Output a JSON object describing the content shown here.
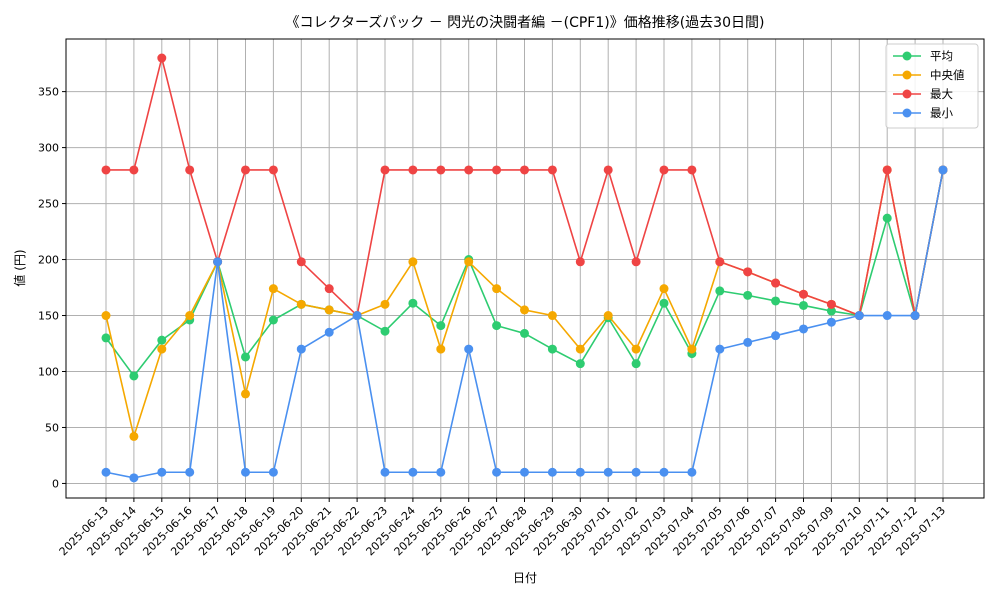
{
  "chart_data": {
    "type": "line",
    "title": "《コレクターズパック － 閃光の決闘者編 －(CPF1)》価格推移(過去30日間)",
    "xlabel": "日付",
    "ylabel": "値 (円)",
    "ylim": [
      -13,
      397
    ],
    "yticks": [
      0,
      50,
      100,
      150,
      200,
      250,
      300,
      350
    ],
    "grid": true,
    "legend_position": "top-right",
    "categories": [
      "2025-06-13",
      "2025-06-14",
      "2025-06-15",
      "2025-06-16",
      "2025-06-17",
      "2025-06-18",
      "2025-06-19",
      "2025-06-20",
      "2025-06-21",
      "2025-06-22",
      "2025-06-23",
      "2025-06-24",
      "2025-06-25",
      "2025-06-26",
      "2025-06-27",
      "2025-06-28",
      "2025-06-29",
      "2025-06-30",
      "2025-07-01",
      "2025-07-02",
      "2025-07-03",
      "2025-07-04",
      "2025-07-05",
      "2025-07-06",
      "2025-07-07",
      "2025-07-08",
      "2025-07-09",
      "2025-07-10",
      "2025-07-11",
      "2025-07-12",
      "2025-07-13"
    ],
    "series": [
      {
        "name": "平均",
        "color": "#2ecc71",
        "values": [
          130,
          96,
          128,
          146,
          198,
          113,
          146,
          160,
          155,
          150,
          136,
          161,
          141,
          200,
          141,
          134,
          120,
          107,
          148,
          107,
          161,
          116,
          172,
          168,
          163,
          159,
          154,
          150,
          237,
          150,
          280
        ]
      },
      {
        "name": "中央値",
        "color": "#f5a800",
        "values": [
          150,
          42,
          120,
          150,
          198,
          80,
          174,
          160,
          155,
          150,
          160,
          198,
          120,
          198,
          174,
          155,
          150,
          120,
          150,
          120,
          174,
          120,
          198,
          189,
          179,
          169,
          160,
          150,
          280,
          150,
          280
        ]
      },
      {
        "name": "最大",
        "color": "#ef4444",
        "values": [
          280,
          280,
          380,
          280,
          198,
          280,
          280,
          198,
          174,
          150,
          280,
          280,
          280,
          280,
          280,
          280,
          280,
          198,
          280,
          198,
          280,
          280,
          198,
          189,
          179,
          169,
          160,
          150,
          280,
          150,
          280
        ]
      },
      {
        "name": "最小",
        "color": "#4a90f0",
        "values": [
          10,
          5,
          10,
          10,
          198,
          10,
          10,
          120,
          135,
          150,
          10,
          10,
          10,
          120,
          10,
          10,
          10,
          10,
          10,
          10,
          10,
          10,
          120,
          126,
          132,
          138,
          144,
          150,
          150,
          150,
          280
        ]
      }
    ]
  }
}
